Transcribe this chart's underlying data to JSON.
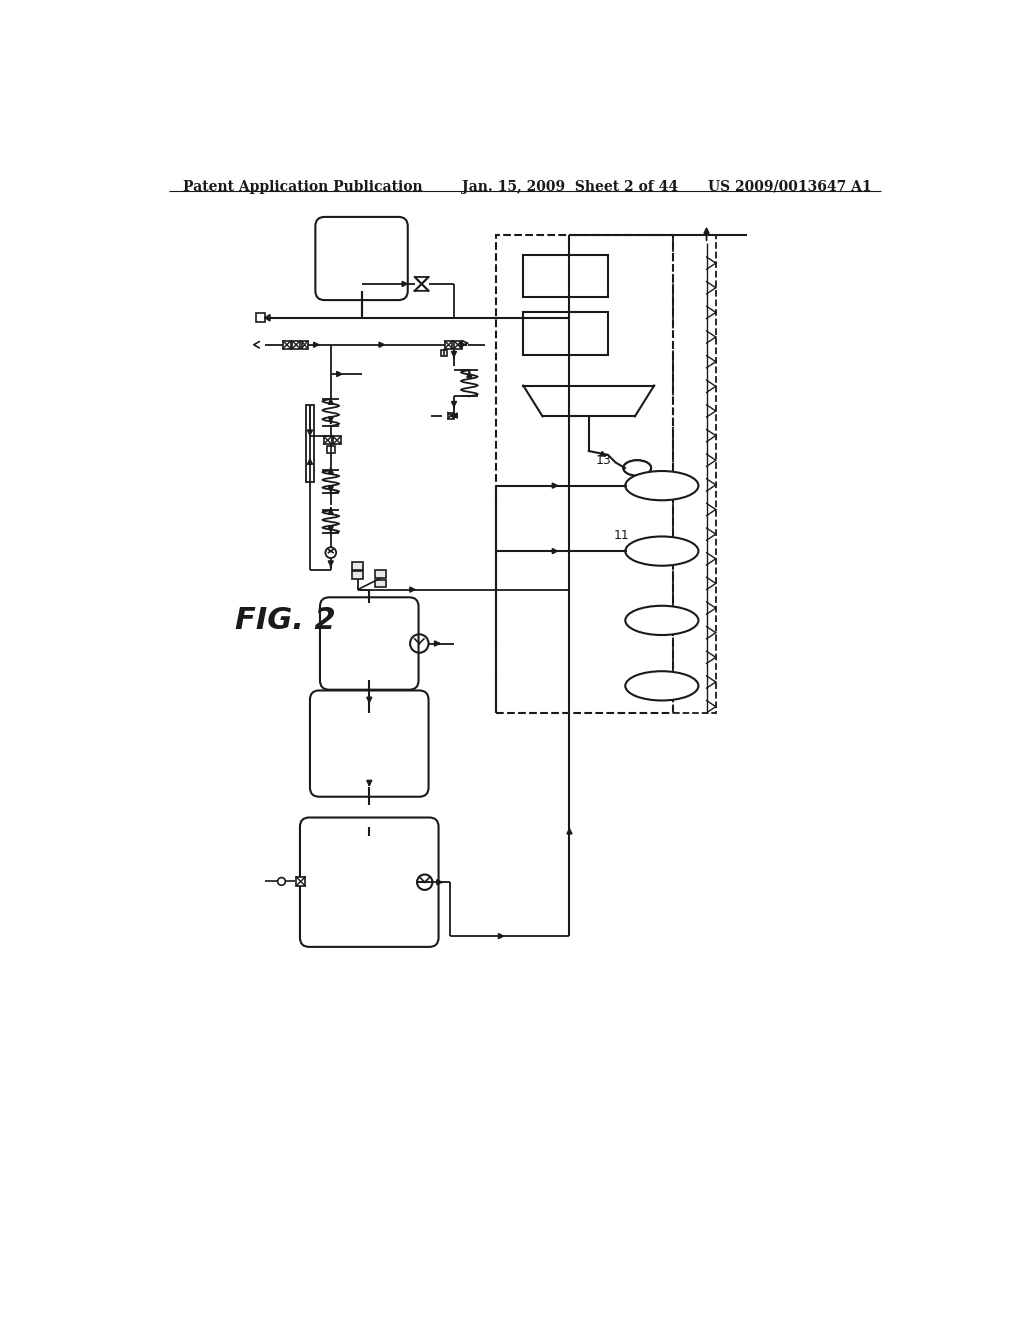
{
  "header_left": "Patent Application Publication",
  "header_center": "Jan. 15, 2009  Sheet 2 of 44",
  "header_right": "US 2009/0013647 A1",
  "fig_label": "FIG. 2",
  "background_color": "#ffffff",
  "line_color": "#1a1a1a"
}
